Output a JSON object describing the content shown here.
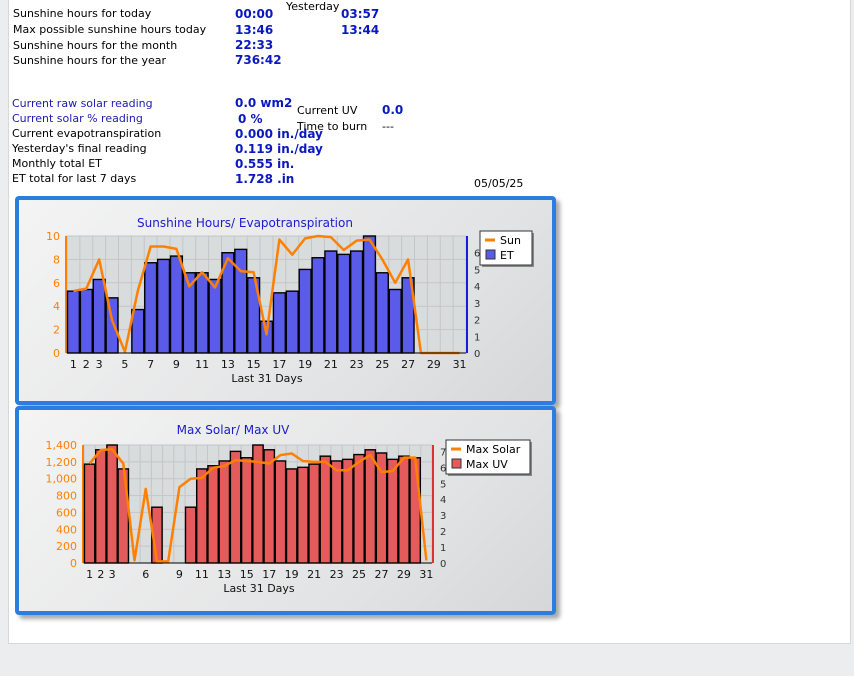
{
  "sunshine": {
    "today_label": "Sunshine hours for today",
    "today_value": "00:00",
    "yesterday_label": "Yesterday",
    "yesterday_value": "03:57",
    "max_today_label": "Max possible sunshine hours today",
    "max_today_value": "13:46",
    "max_yesterday_value": "13:44",
    "month_label": "Sunshine hours for the month",
    "month_value": "22:33",
    "year_label": "Sunshine hours for the year",
    "year_value": "736:42"
  },
  "solar": {
    "raw_label": "Current raw solar reading",
    "raw_value": "0.0 wm2",
    "percent_label": "Current solar % reading",
    "percent_value": "0 %",
    "et_label": "Current evapotranspiration",
    "et_value": "0.000 in./day",
    "yesterday_final_label": "Yesterday's final reading",
    "yesterday_final_value": "0.119 in./day",
    "monthly_et_label": "Monthly total ET",
    "monthly_et_value": "0.555 in.",
    "et7_label": "ET total for last 7 days",
    "et7_value": "1.728 .in"
  },
  "uv": {
    "current_label": "Current UV",
    "current_value": "0.0",
    "burn_label": "Time to burn",
    "burn_value": "---"
  },
  "date": "05/05/25",
  "chart_data": [
    {
      "type": "bar",
      "title": "Sunshine Hours/ Evapotranspiration",
      "xlabel": "Last 31 Days",
      "x": [
        1,
        2,
        3,
        4,
        5,
        6,
        7,
        8,
        9,
        10,
        11,
        12,
        13,
        14,
        15,
        16,
        17,
        18,
        19,
        20,
        21,
        22,
        23,
        24,
        25,
        26,
        27,
        28,
        29,
        30,
        31
      ],
      "x_ticks": [
        "1",
        "2",
        "3",
        "5",
        "7",
        "9",
        "11",
        "13",
        "15",
        "17",
        "19",
        "21",
        "23",
        "25",
        "27",
        "29",
        "31"
      ],
      "y_left": {
        "ylim": [
          0,
          10
        ],
        "ticks": [
          "0",
          "2",
          "4",
          "6",
          "8",
          "10"
        ]
      },
      "y_right": {
        "ylim": [
          0,
          7
        ],
        "ticks": [
          "0",
          "1",
          "2",
          "3",
          "4",
          "5",
          "6"
        ]
      },
      "legend": "top-right",
      "grid": true,
      "series": [
        {
          "name": "Sun",
          "type": "line",
          "axis": "left",
          "color": "#ff8000",
          "values": [
            5.3,
            5.5,
            8.0,
            2.8,
            0.1,
            5.3,
            9.1,
            9.1,
            8.9,
            5.7,
            6.9,
            5.6,
            8.1,
            7.0,
            6.9,
            1.6,
            9.7,
            8.4,
            9.8,
            10.0,
            9.9,
            8.8,
            9.6,
            9.7,
            8.0,
            6.0,
            8.0,
            0,
            0,
            0,
            0
          ]
        },
        {
          "name": "ET",
          "type": "bar",
          "axis": "right",
          "color": "#5b5bea",
          "values": [
            3.7,
            3.8,
            4.4,
            3.3,
            0,
            2.6,
            5.4,
            5.6,
            5.8,
            4.8,
            4.8,
            4.4,
            6.0,
            6.2,
            4.5,
            1.9,
            3.6,
            3.7,
            5.0,
            5.7,
            6.1,
            5.9,
            6.1,
            7.0,
            4.8,
            3.8,
            4.5,
            0,
            0,
            0,
            0
          ]
        }
      ]
    },
    {
      "type": "bar",
      "title": "Max Solar/ Max UV",
      "xlabel": "Last 31 Days",
      "x": [
        1,
        2,
        3,
        4,
        5,
        6,
        7,
        8,
        9,
        10,
        11,
        12,
        13,
        14,
        15,
        16,
        17,
        18,
        19,
        20,
        21,
        22,
        23,
        24,
        25,
        26,
        27,
        28,
        29,
        30,
        31
      ],
      "x_ticks": [
        "1",
        "2",
        "3",
        "6",
        "9",
        "11",
        "13",
        "15",
        "17",
        "19",
        "21",
        "23",
        "25",
        "27",
        "29",
        "31"
      ],
      "y_left": {
        "ylim": [
          0,
          1400
        ],
        "ticks": [
          "0",
          "200",
          "400",
          "600",
          "800",
          "1,000",
          "1,200",
          "1,400"
        ]
      },
      "y_right": {
        "ylim": [
          0,
          7.4
        ],
        "ticks": [
          "0",
          "1",
          "2",
          "3",
          "4",
          "5",
          "6",
          "7"
        ]
      },
      "legend": "top-right",
      "grid": true,
      "series": [
        {
          "name": "Max Solar",
          "type": "line",
          "axis": "left",
          "color": "#ff8000",
          "values": [
            1180,
            1340,
            1350,
            1180,
            30,
            880,
            20,
            20,
            900,
            1000,
            1010,
            1130,
            1150,
            1220,
            1210,
            1200,
            1180,
            1280,
            1300,
            1210,
            1200,
            1200,
            1100,
            1100,
            1200,
            1280,
            1080,
            1090,
            1250,
            1250,
            30
          ]
        },
        {
          "name": "Max UV",
          "type": "bar",
          "axis": "right",
          "color": "#e35b5b",
          "values": [
            6.2,
            7.1,
            7.4,
            5.9,
            0,
            0,
            3.5,
            0,
            0,
            3.5,
            5.9,
            6.1,
            6.4,
            7.0,
            6.6,
            7.4,
            7.1,
            6.4,
            5.9,
            6.0,
            6.2,
            6.7,
            6.4,
            6.5,
            6.8,
            7.1,
            6.9,
            6.5,
            6.7,
            6.6,
            0
          ]
        }
      ]
    }
  ]
}
